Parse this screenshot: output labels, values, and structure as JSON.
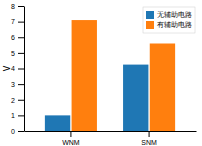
{
  "chart_data": {
    "type": "bar",
    "categories": [
      "WNM",
      "SNM"
    ],
    "series": [
      {
        "name": "无辅助电路",
        "values": [
          1.0,
          4.25
        ]
      },
      {
        "name": "有辅助电路",
        "values": [
          7.1,
          5.6
        ]
      }
    ],
    "ylabel": "V",
    "ylim": [
      0,
      8
    ],
    "yticks": [
      0,
      1,
      2,
      3,
      4,
      5,
      6,
      7,
      8
    ],
    "legend": "upper right",
    "grid": false
  }
}
